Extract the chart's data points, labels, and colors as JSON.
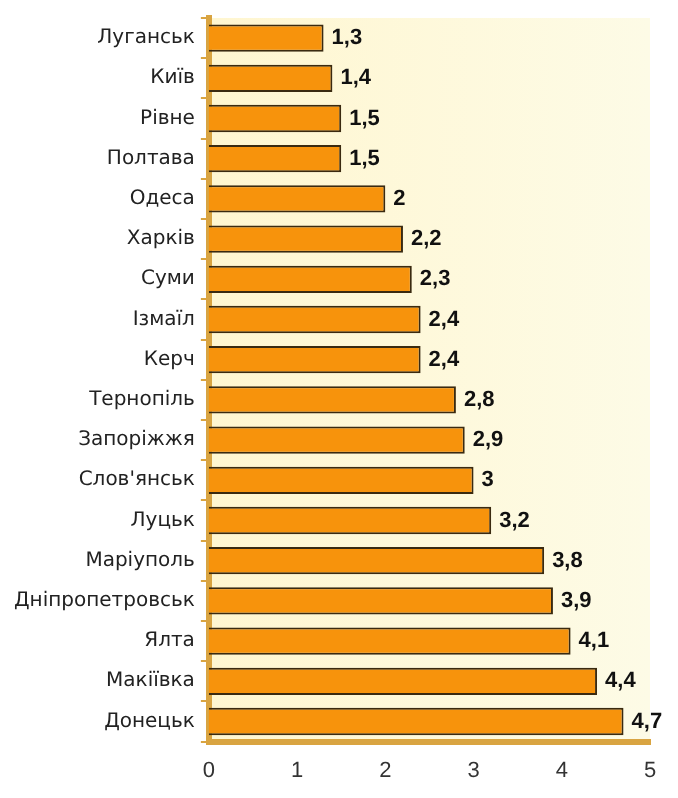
{
  "chart_data": {
    "type": "bar",
    "orientation": "horizontal",
    "categories": [
      "Луганськ",
      "Київ",
      "Рівне",
      "Полтава",
      "Одеса",
      "Харків",
      "Суми",
      "Ізмаїл",
      "Керч",
      "Тернопіль",
      "Запоріжжя",
      "Слов'янськ",
      "Луцьк",
      "Маріуполь",
      "Дніпропетровськ",
      "Ялта",
      "Макіївка",
      "Донецьк"
    ],
    "values": [
      1.3,
      1.4,
      1.5,
      1.5,
      2,
      2.2,
      2.3,
      2.4,
      2.4,
      2.8,
      2.9,
      3,
      3.2,
      3.8,
      3.9,
      4.1,
      4.4,
      4.7
    ],
    "value_labels": [
      "1,3",
      "1,4",
      "1,5",
      "1,5",
      "2",
      "2,2",
      "2,3",
      "2,4",
      "2,4",
      "2,8",
      "2,9",
      "3",
      "3,2",
      "3,8",
      "3,9",
      "4,1",
      "4,4",
      "4,7"
    ],
    "color": "#f7930c",
    "xlim": [
      0,
      5
    ],
    "xticks": [
      0,
      1,
      2,
      3,
      4,
      5
    ],
    "grid": false,
    "legend": false
  }
}
